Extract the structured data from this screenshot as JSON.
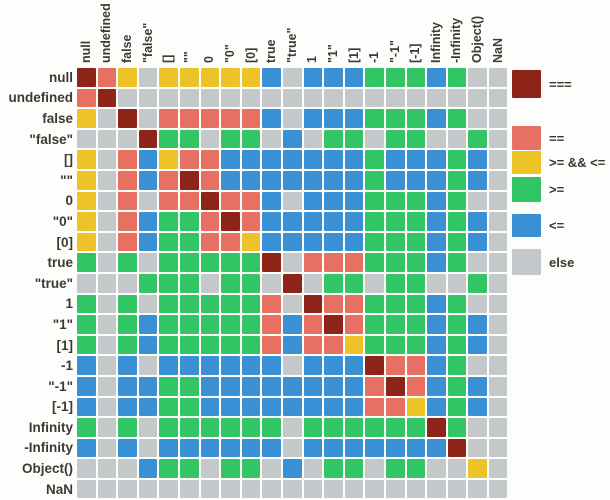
{
  "chart_data": {
    "type": "heatmap",
    "description_visible_text_only": "",
    "labels": [
      "null",
      "undefined",
      "false",
      "\"false\"",
      "[]",
      "\"\"",
      "0",
      "\"0\"",
      "[0]",
      "true",
      "\"true\"",
      "1",
      "\"1\"",
      "[1]",
      "-1",
      "\"-1\"",
      "[-1]",
      "Infinity",
      "-Infinity",
      "Object()",
      "NaN"
    ],
    "cell_codes": {
      "E": "===",
      "e": "==",
      "y": ">= && <=",
      "g": ">=",
      "b": "<=",
      ".": "else"
    },
    "palette": {
      "E": "#8e2318",
      "e": "#e87063",
      "y": "#edc327",
      "g": "#31c565",
      "b": "#3a90d5",
      ".": "#c4c8ca"
    },
    "matrix": [
      "Eey.yyyyyb.bbbgggbg..",
      "eE...................",
      "y.E.eeeeeb.bbbgggbg..",
      "...Egg.gg.b.gg.gg..g.",
      "y.ebyeebbbbbbbgbbbgb.",
      "y.ebeEebbbbbbbgbbbgb.",
      "y.e.eeEeeb.bbbgggbg..",
      "y.ebggeEebbbbbgggbgb.",
      "y.ebggeeybbbbbgggbgb.",
      "g.g.gggggE.eeegggbg..",
      "...ggg.gg.E.gg.gg..g.",
      "g.g.ggggge.Eeegggbg..",
      "g.gbgggggebeEegggbgb.",
      "g.gbgggggebeeygggbgb.",
      "b.b.bbbbbb.bbbEeebg..",
      "b.bbggbbbbbbbbeEebgb.",
      "b.bbggbbbbbbbbeeybgb.",
      "g.g.gggggg.ggggggEg..",
      "b.b.bbbbbb.bbbbbbbE..",
      "...bgg.gg.b.gg.gg..y.",
      "....................."
    ],
    "legend_position": "right",
    "grid": "white gaps between cells"
  },
  "legend": [
    {
      "label": "===",
      "color": "#8e2318"
    },
    {
      "label": "==",
      "color": "#e87063"
    },
    {
      "label": ">= && <=",
      "color": "#edc327"
    },
    {
      "label": ">=",
      "color": "#31c565"
    },
    {
      "label": "<=",
      "color": "#3a90d5"
    },
    {
      "label": "else",
      "color": "#c4c8ca"
    }
  ]
}
